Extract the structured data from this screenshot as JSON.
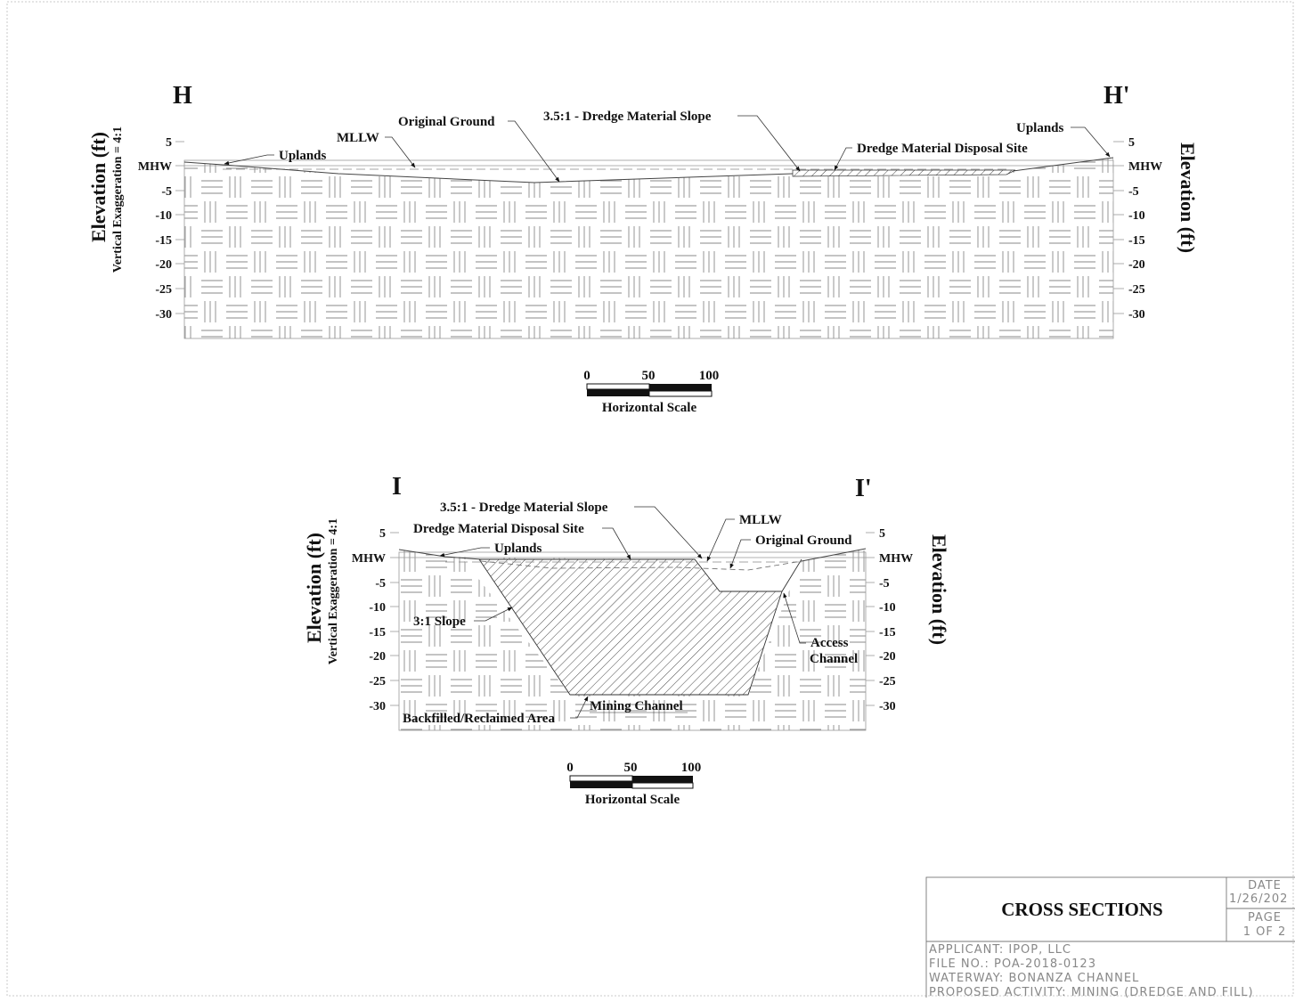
{
  "section_h": {
    "start_label": "H",
    "end_label": "H'",
    "y_axis_title": "Elevation (ft)",
    "y_axis_subtitle": "Vertical Exaggeration = 4:1",
    "y_ticks": [
      "5",
      "MHW",
      "-5",
      "-10",
      "-15",
      "-20",
      "-25",
      "-30"
    ],
    "callouts": {
      "original_ground": "Original Ground",
      "slope": "3.5:1 - Dredge Material Slope",
      "mllw": "MLLW",
      "uplands_left": "Uplands",
      "uplands_right": "Uplands",
      "disposal_site": "Dredge Material Disposal Site"
    },
    "scale": {
      "ticks": [
        "0",
        "50",
        "100"
      ],
      "label": "Horizontal Scale"
    }
  },
  "section_i": {
    "start_label": "I",
    "end_label": "I'",
    "y_axis_title": "Elevation (ft)",
    "y_axis_subtitle": "Vertical Exaggeration = 4:1",
    "y_ticks": [
      "5",
      "MHW",
      "-5",
      "-10",
      "-15",
      "-20",
      "-25",
      "-30"
    ],
    "callouts": {
      "slope": "3.5:1 - Dredge Material Slope",
      "mllw": "MLLW",
      "disposal_site": "Dredge Material Disposal Site",
      "original_ground": "Original Ground",
      "uplands": "Uplands",
      "slope_3_1": "3:1 Slope",
      "access_channel_1": "Access",
      "access_channel_2": "Channel",
      "backfilled": "Backfilled/Reclaimed Area",
      "mining_channel": "Mining Channel"
    },
    "scale": {
      "ticks": [
        "0",
        "50",
        "100"
      ],
      "label": "Horizontal Scale"
    }
  },
  "title_block": {
    "title": "CROSS SECTIONS",
    "date_label": "DATE",
    "date_value": "1/26/202",
    "page_label": "PAGE",
    "page_value": "1 OF 2",
    "lines": [
      "APPLICANT: IPOP, LLC",
      "FILE NO.: POA-2018-0123",
      "WATERWAY: BONANZA CHANNEL",
      "PROPOSED ACTIVITY: MINING (DREDGE AND FILL)"
    ]
  }
}
